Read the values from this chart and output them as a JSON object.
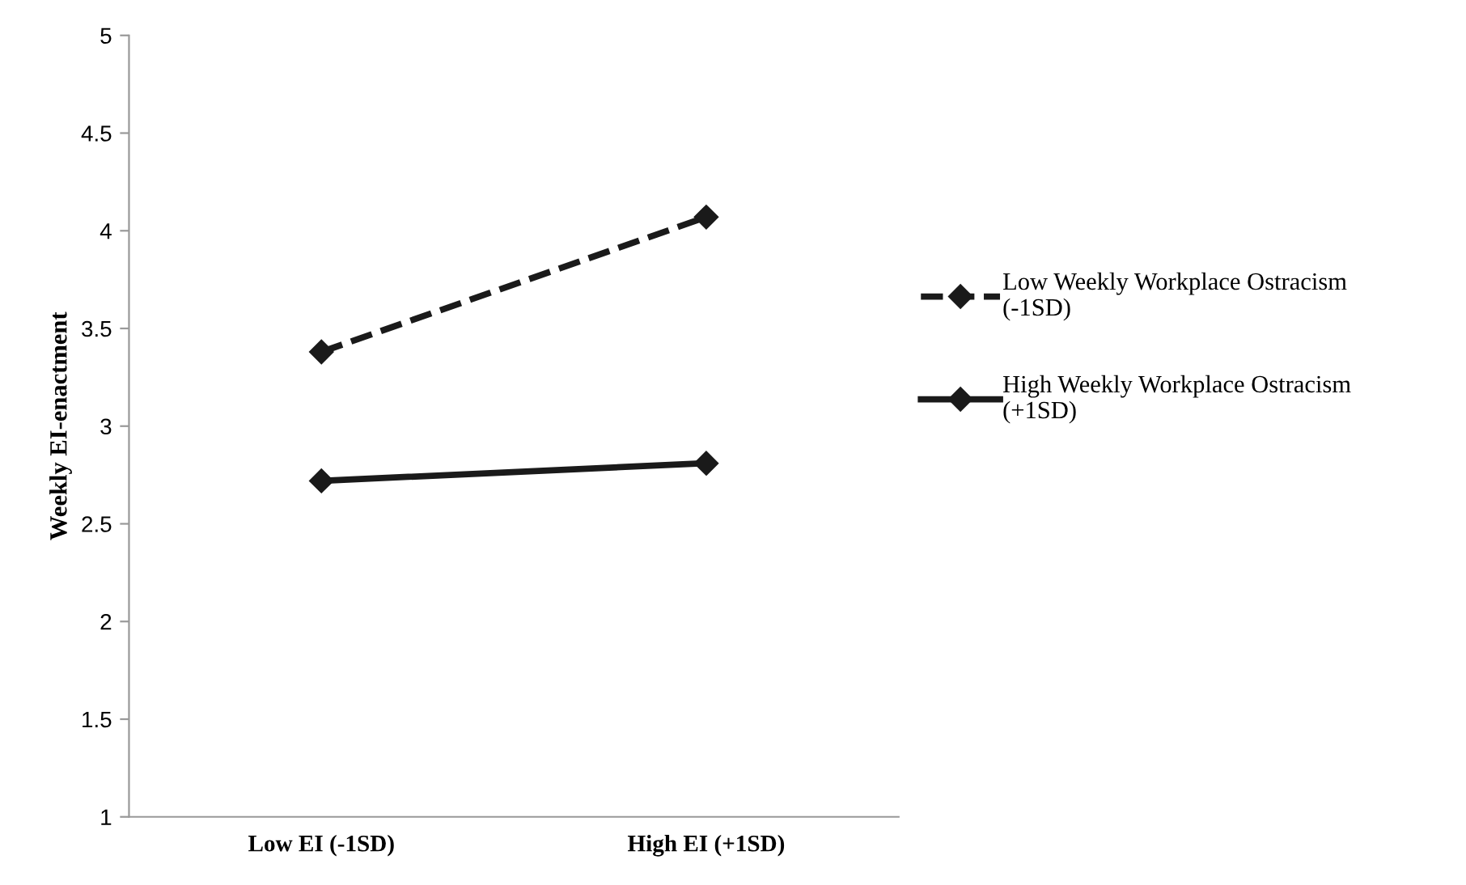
{
  "chart_data": {
    "type": "line",
    "ylabel": "Weekly EI-enactment",
    "categories": [
      "Low EI (-1SD)",
      "High EI (+1SD)"
    ],
    "series": [
      {
        "name": "Low Weekly Workplace Ostracism\n(-1SD)",
        "color": "#1a1a1a",
        "values": [
          3.38,
          4.07
        ],
        "line_style": "dashed"
      },
      {
        "name": "High Weekly Workplace Ostracism\n(+1SD)",
        "color": "#1a1a1a",
        "values": [
          2.72,
          2.81
        ],
        "line_style": "solid"
      }
    ],
    "ylim": [
      1,
      5
    ],
    "yticks": [
      1,
      1.5,
      2,
      2.5,
      3,
      3.5,
      4,
      4.5,
      5
    ],
    "grid": false,
    "legend": "right",
    "marker": "diamond"
  }
}
